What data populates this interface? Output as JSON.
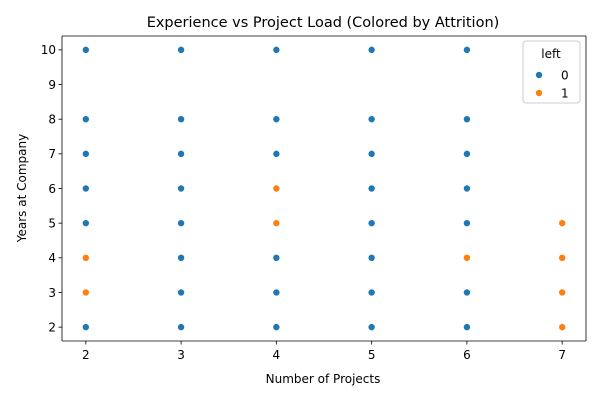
{
  "chart_data": {
    "type": "scatter",
    "title": "Experience vs Project Load (Colored by Attrition)",
    "xlabel": "Number of Projects",
    "ylabel": "Years at Company",
    "xlim": [
      1.75,
      7.25
    ],
    "ylim": [
      1.6,
      10.4
    ],
    "xticks": [
      2,
      3,
      4,
      5,
      6,
      7
    ],
    "yticks": [
      2,
      3,
      4,
      5,
      6,
      7,
      8,
      9,
      10
    ],
    "grid": false,
    "legend": {
      "title": "left",
      "placement": "top-right",
      "entries": [
        {
          "label": "0",
          "color": "#1f77b4"
        },
        {
          "label": "1",
          "color": "#ff7f0e"
        }
      ]
    },
    "series": [
      {
        "name": "0",
        "color": "#1f77b4",
        "points": [
          [
            2,
            2
          ],
          [
            2,
            5
          ],
          [
            2,
            6
          ],
          [
            2,
            7
          ],
          [
            2,
            8
          ],
          [
            2,
            10
          ],
          [
            3,
            2
          ],
          [
            3,
            3
          ],
          [
            3,
            4
          ],
          [
            3,
            5
          ],
          [
            3,
            6
          ],
          [
            3,
            7
          ],
          [
            3,
            8
          ],
          [
            3,
            10
          ],
          [
            4,
            2
          ],
          [
            4,
            3
          ],
          [
            4,
            4
          ],
          [
            4,
            7
          ],
          [
            4,
            8
          ],
          [
            4,
            10
          ],
          [
            5,
            2
          ],
          [
            5,
            3
          ],
          [
            5,
            4
          ],
          [
            5,
            5
          ],
          [
            5,
            6
          ],
          [
            5,
            7
          ],
          [
            5,
            8
          ],
          [
            5,
            10
          ],
          [
            6,
            2
          ],
          [
            6,
            3
          ],
          [
            6,
            5
          ],
          [
            6,
            6
          ],
          [
            6,
            7
          ],
          [
            6,
            8
          ],
          [
            6,
            10
          ]
        ]
      },
      {
        "name": "1",
        "color": "#ff7f0e",
        "points": [
          [
            2,
            3
          ],
          [
            2,
            4
          ],
          [
            4,
            5
          ],
          [
            4,
            6
          ],
          [
            6,
            4
          ],
          [
            7,
            2
          ],
          [
            7,
            3
          ],
          [
            7,
            4
          ],
          [
            7,
            5
          ]
        ]
      }
    ]
  }
}
